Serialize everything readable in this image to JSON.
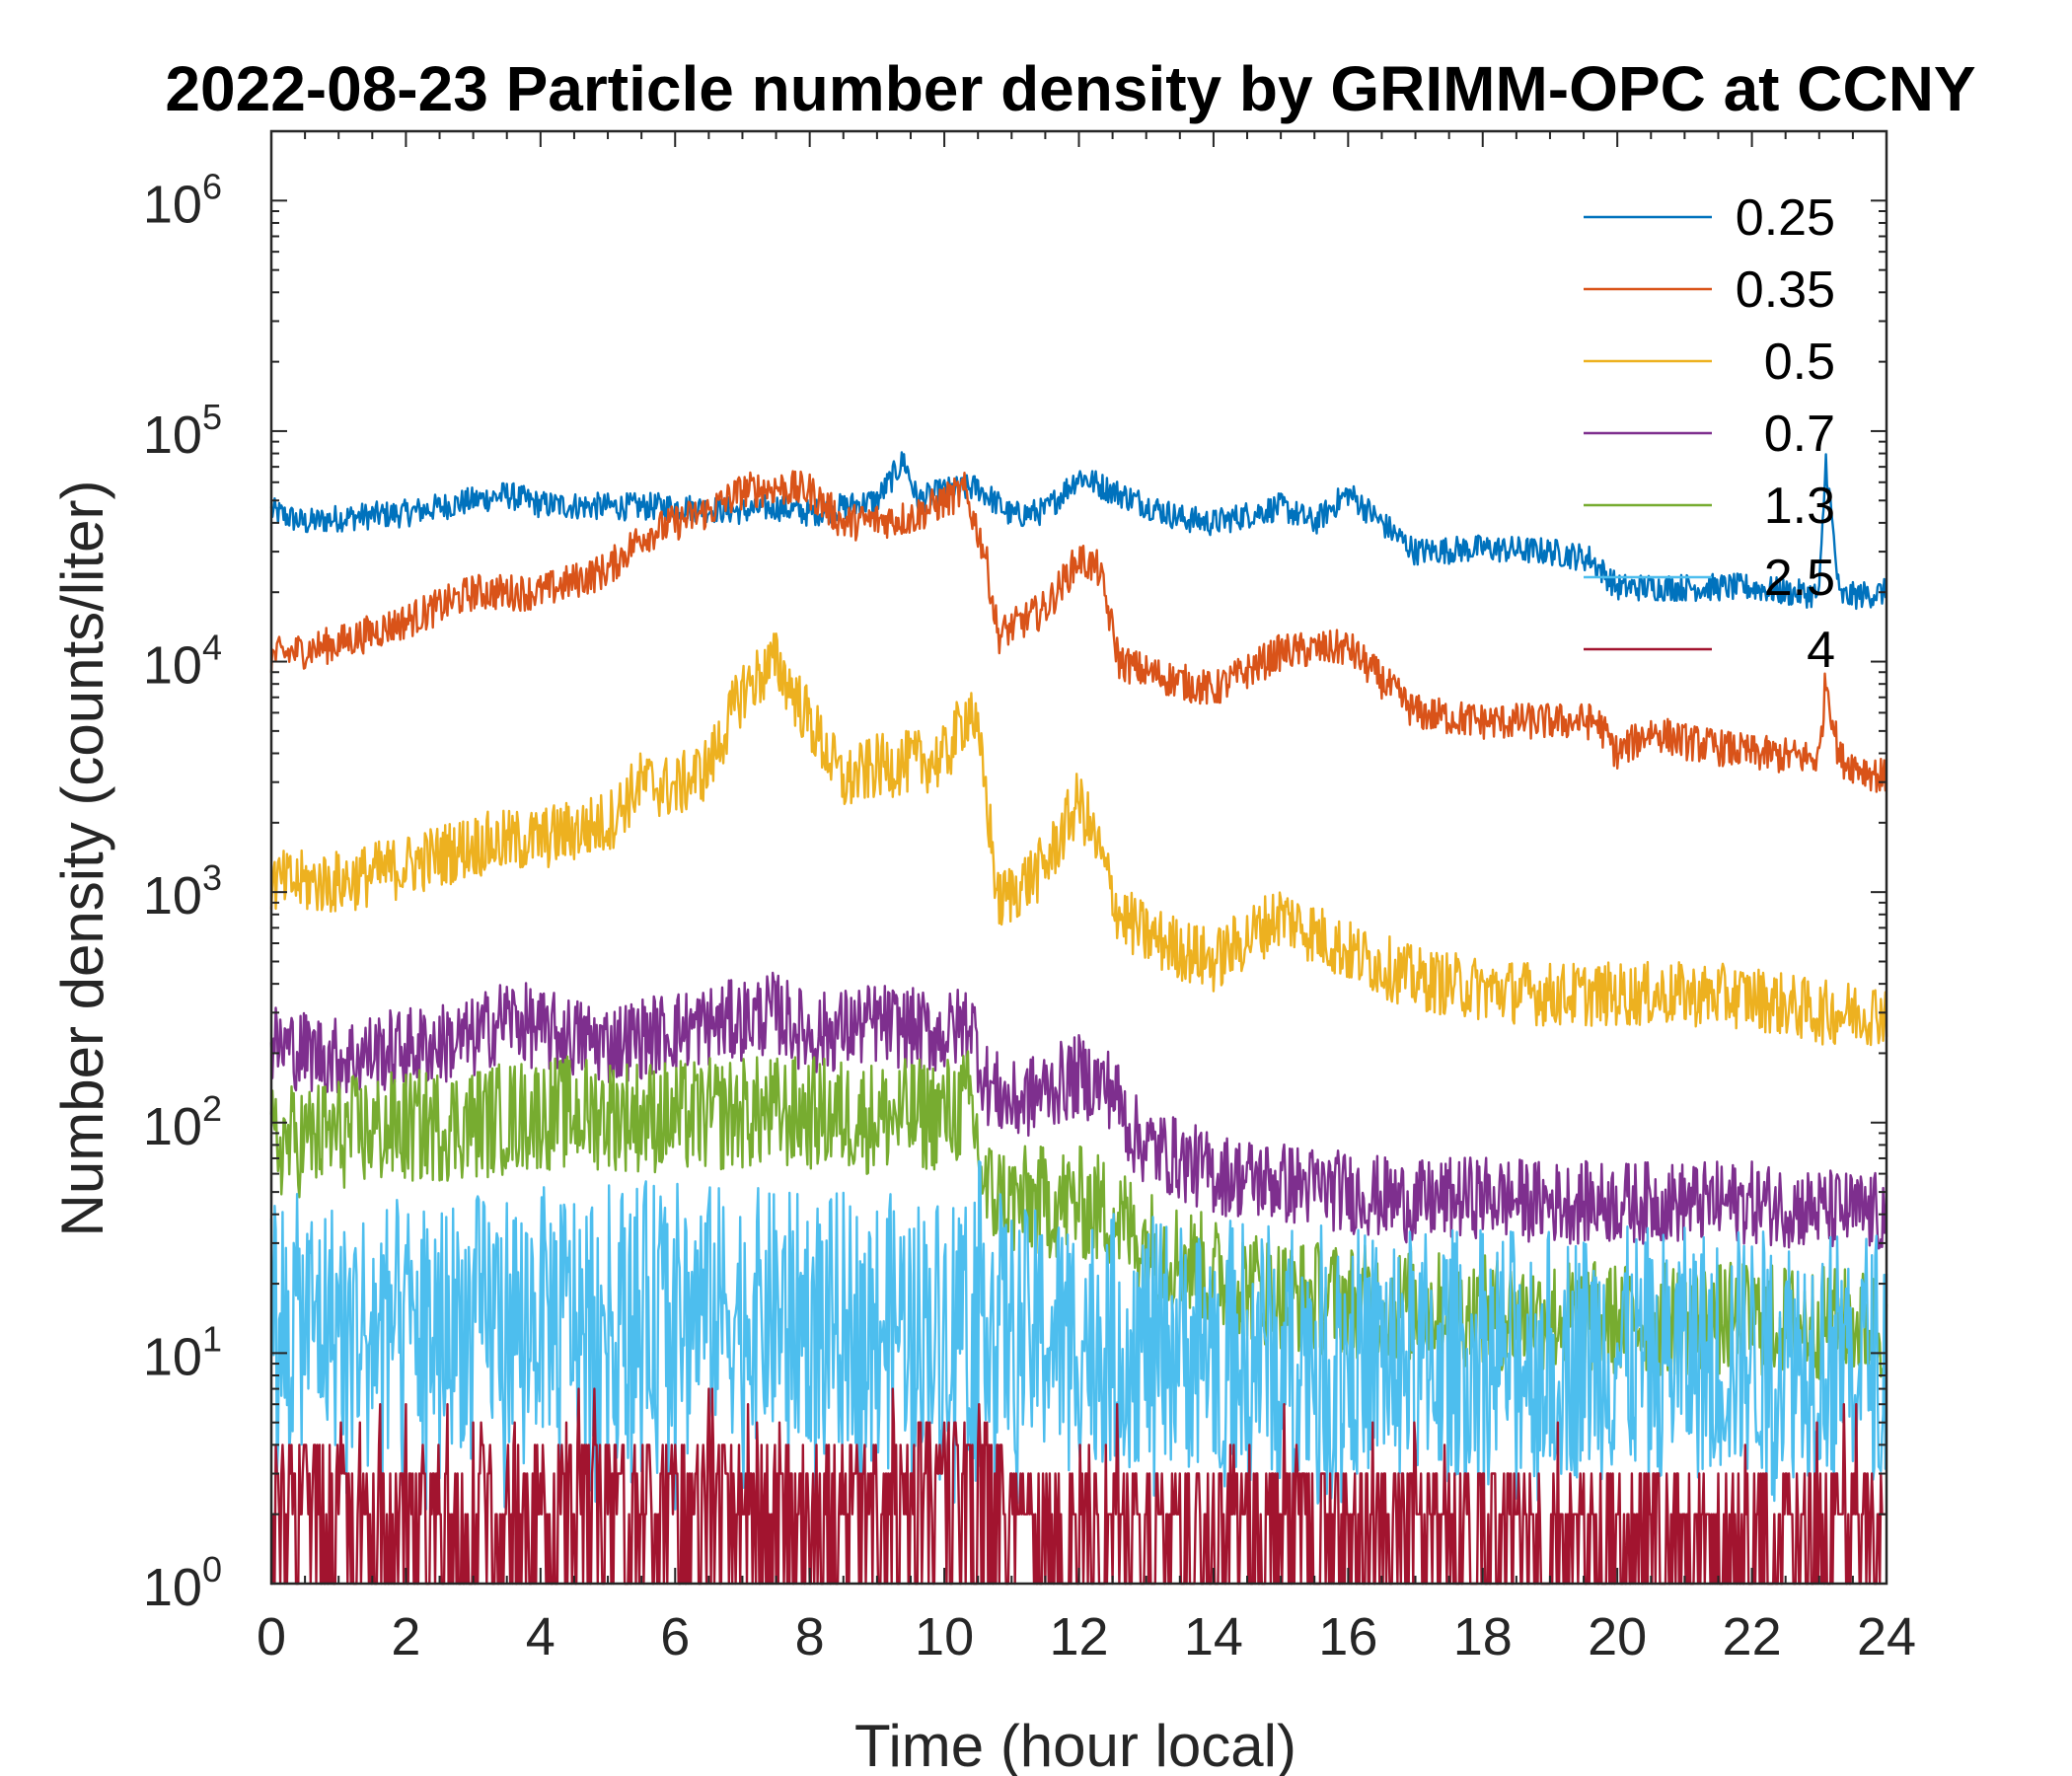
{
  "chart_data": {
    "type": "line",
    "title": "2022-08-23 Particle number density by GRIMM-OPC at CCNY",
    "xlabel": "Time (hour local)",
    "ylabel": "Number density (counts/liter)",
    "xlim": [
      0,
      24
    ],
    "ylim": [
      1,
      2000000
    ],
    "yscale": "log",
    "xticks": [
      0,
      2,
      4,
      6,
      8,
      10,
      12,
      14,
      16,
      18,
      20,
      22,
      24
    ],
    "yticks": [
      {
        "base": "10",
        "exp": "0"
      },
      {
        "base": "10",
        "exp": "1"
      },
      {
        "base": "10",
        "exp": "2"
      },
      {
        "base": "10",
        "exp": "3"
      },
      {
        "base": "10",
        "exp": "4"
      },
      {
        "base": "10",
        "exp": "5"
      },
      {
        "base": "10",
        "exp": "6"
      }
    ],
    "legend_position": "top-right",
    "series": [
      {
        "name": "0.25",
        "color": "#0072BD",
        "noise": 0.06,
        "points": [
          [
            0,
            45000
          ],
          [
            0.5,
            40000
          ],
          [
            1,
            42000
          ],
          [
            2,
            44000
          ],
          [
            3,
            50000
          ],
          [
            3.5,
            53000
          ],
          [
            4,
            48000
          ],
          [
            5,
            47000
          ],
          [
            6,
            47000
          ],
          [
            7,
            45000
          ],
          [
            7.5,
            47000
          ],
          [
            8,
            44000
          ],
          [
            9,
            50000
          ],
          [
            9.4,
            75000
          ],
          [
            9.6,
            50000
          ],
          [
            10,
            55000
          ],
          [
            10.5,
            57000
          ],
          [
            11,
            43000
          ],
          [
            11.5,
            45000
          ],
          [
            12,
            64000
          ],
          [
            12.5,
            55000
          ],
          [
            13,
            48000
          ],
          [
            13.5,
            42000
          ],
          [
            14,
            40000
          ],
          [
            15,
            47000
          ],
          [
            15.5,
            40000
          ],
          [
            16,
            54000
          ],
          [
            16.5,
            40000
          ],
          [
            17,
            30000
          ],
          [
            18,
            31000
          ],
          [
            19,
            30000
          ],
          [
            19.6,
            28000
          ],
          [
            20,
            21000
          ],
          [
            21,
            21000
          ],
          [
            22,
            21000
          ],
          [
            22.5,
            20000
          ],
          [
            23,
            19500
          ],
          [
            23.1,
            75000
          ],
          [
            23.3,
            19000
          ],
          [
            24,
            20000
          ]
        ]
      },
      {
        "name": "0.35",
        "color": "#D95319",
        "noise": 0.08,
        "points": [
          [
            0,
            10500
          ],
          [
            1,
            12000
          ],
          [
            2,
            15000
          ],
          [
            3,
            20000
          ],
          [
            4,
            20000
          ],
          [
            5,
            25000
          ],
          [
            5.5,
            35000
          ],
          [
            6,
            40000
          ],
          [
            6.5,
            45000
          ],
          [
            7,
            55000
          ],
          [
            7.5,
            57000
          ],
          [
            8,
            55000
          ],
          [
            8.5,
            40000
          ],
          [
            9.5,
            42000
          ],
          [
            10.3,
            55000
          ],
          [
            10.6,
            30000
          ],
          [
            10.8,
            13000
          ],
          [
            11.5,
            17000
          ],
          [
            12,
            28000
          ],
          [
            12.3,
            25000
          ],
          [
            12.6,
            10000
          ],
          [
            13,
            9000
          ],
          [
            14,
            7500
          ],
          [
            15,
            11000
          ],
          [
            16,
            11500
          ],
          [
            17,
            6000
          ],
          [
            18,
            5500
          ],
          [
            19,
            5500
          ],
          [
            19.7,
            5500
          ],
          [
            20,
            4000
          ],
          [
            20.5,
            5000
          ],
          [
            21,
            4500
          ],
          [
            22,
            4000
          ],
          [
            23,
            3800
          ],
          [
            23.1,
            8500
          ],
          [
            23.3,
            3800
          ],
          [
            24,
            3100
          ]
        ]
      },
      {
        "name": "0.5",
        "color": "#EDB120",
        "noise": 0.14,
        "points": [
          [
            0,
            1100
          ],
          [
            1,
            1100
          ],
          [
            2,
            1300
          ],
          [
            3,
            1600
          ],
          [
            4,
            1700
          ],
          [
            5,
            2000
          ],
          [
            5.5,
            3000
          ],
          [
            6,
            2800
          ],
          [
            6.5,
            3500
          ],
          [
            7,
            7500
          ],
          [
            7.5,
            10000
          ],
          [
            8,
            5500
          ],
          [
            8.5,
            3000
          ],
          [
            9,
            3500
          ],
          [
            10,
            3800
          ],
          [
            10.4,
            6500
          ],
          [
            10.6,
            3000
          ],
          [
            10.8,
            900
          ],
          [
            11.5,
            1300
          ],
          [
            12,
            2500
          ],
          [
            12.3,
            1500
          ],
          [
            12.6,
            800
          ],
          [
            13,
            650
          ],
          [
            14,
            500
          ],
          [
            15,
            800
          ],
          [
            16,
            550
          ],
          [
            17,
            420
          ],
          [
            18,
            380
          ],
          [
            19,
            360
          ],
          [
            20,
            360
          ],
          [
            21,
            360
          ],
          [
            22,
            350
          ],
          [
            23,
            300
          ],
          [
            24,
            300
          ]
        ]
      },
      {
        "name": "0.7",
        "color": "#7E2F8E",
        "noise": 0.18,
        "points": [
          [
            0,
            220
          ],
          [
            1,
            190
          ],
          [
            2,
            210
          ],
          [
            3,
            230
          ],
          [
            3.5,
            290
          ],
          [
            4,
            250
          ],
          [
            5,
            220
          ],
          [
            6,
            250
          ],
          [
            7,
            280
          ],
          [
            7.5,
            300
          ],
          [
            8,
            240
          ],
          [
            9,
            270
          ],
          [
            10,
            240
          ],
          [
            10.4,
            280
          ],
          [
            10.6,
            150
          ],
          [
            11,
            120
          ],
          [
            12,
            160
          ],
          [
            12.5,
            140
          ],
          [
            12.8,
            90
          ],
          [
            13,
            80
          ],
          [
            14,
            60
          ],
          [
            15,
            55
          ],
          [
            16,
            50
          ],
          [
            17,
            45
          ],
          [
            18,
            48
          ],
          [
            19,
            45
          ],
          [
            20,
            45
          ],
          [
            21,
            45
          ],
          [
            22,
            45
          ],
          [
            23,
            42
          ],
          [
            24,
            40
          ]
        ]
      },
      {
        "name": "1.3",
        "color": "#77AC30",
        "noise": 0.25,
        "points": [
          [
            0,
            80
          ],
          [
            1,
            90
          ],
          [
            2,
            95
          ],
          [
            3,
            100
          ],
          [
            4,
            110
          ],
          [
            5,
            110
          ],
          [
            6,
            105
          ],
          [
            7,
            110
          ],
          [
            8,
            110
          ],
          [
            9,
            105
          ],
          [
            10,
            110
          ],
          [
            10.4,
            120
          ],
          [
            10.6,
            50
          ],
          [
            11,
            45
          ],
          [
            12,
            45
          ],
          [
            12.5,
            40
          ],
          [
            13,
            30
          ],
          [
            14,
            22
          ],
          [
            15,
            18
          ],
          [
            16,
            17
          ],
          [
            18,
            15
          ],
          [
            20,
            14
          ],
          [
            22,
            14
          ],
          [
            24,
            13
          ]
        ]
      },
      {
        "name": "2.5",
        "color": "#4DBEEE",
        "noise": 0.55,
        "points": [
          [
            0,
            14
          ],
          [
            2,
            13
          ],
          [
            4,
            15
          ],
          [
            6,
            16
          ],
          [
            8,
            14
          ],
          [
            10,
            14
          ],
          [
            10.5,
            20
          ],
          [
            11,
            12
          ],
          [
            12,
            12
          ],
          [
            13,
            11
          ],
          [
            14,
            11
          ],
          [
            16,
            10
          ],
          [
            18,
            10
          ],
          [
            20,
            10
          ],
          [
            22,
            10
          ],
          [
            24,
            10
          ]
        ]
      },
      {
        "name": "4",
        "color": "#A2142F",
        "noise": 1.0,
        "points": [
          [
            0,
            1.5
          ],
          [
            2,
            1.4
          ],
          [
            4,
            1.6
          ],
          [
            5.5,
            1.8
          ],
          [
            7,
            1.5
          ],
          [
            9,
            1.6
          ],
          [
            10,
            2.2
          ],
          [
            10.5,
            2.5
          ],
          [
            11,
            1.3
          ],
          [
            13,
            1.2
          ],
          [
            14,
            1.4
          ],
          [
            16,
            1.3
          ],
          [
            18,
            1.2
          ],
          [
            20,
            1.2
          ],
          [
            22,
            1.2
          ],
          [
            24,
            1.2
          ]
        ]
      }
    ]
  }
}
